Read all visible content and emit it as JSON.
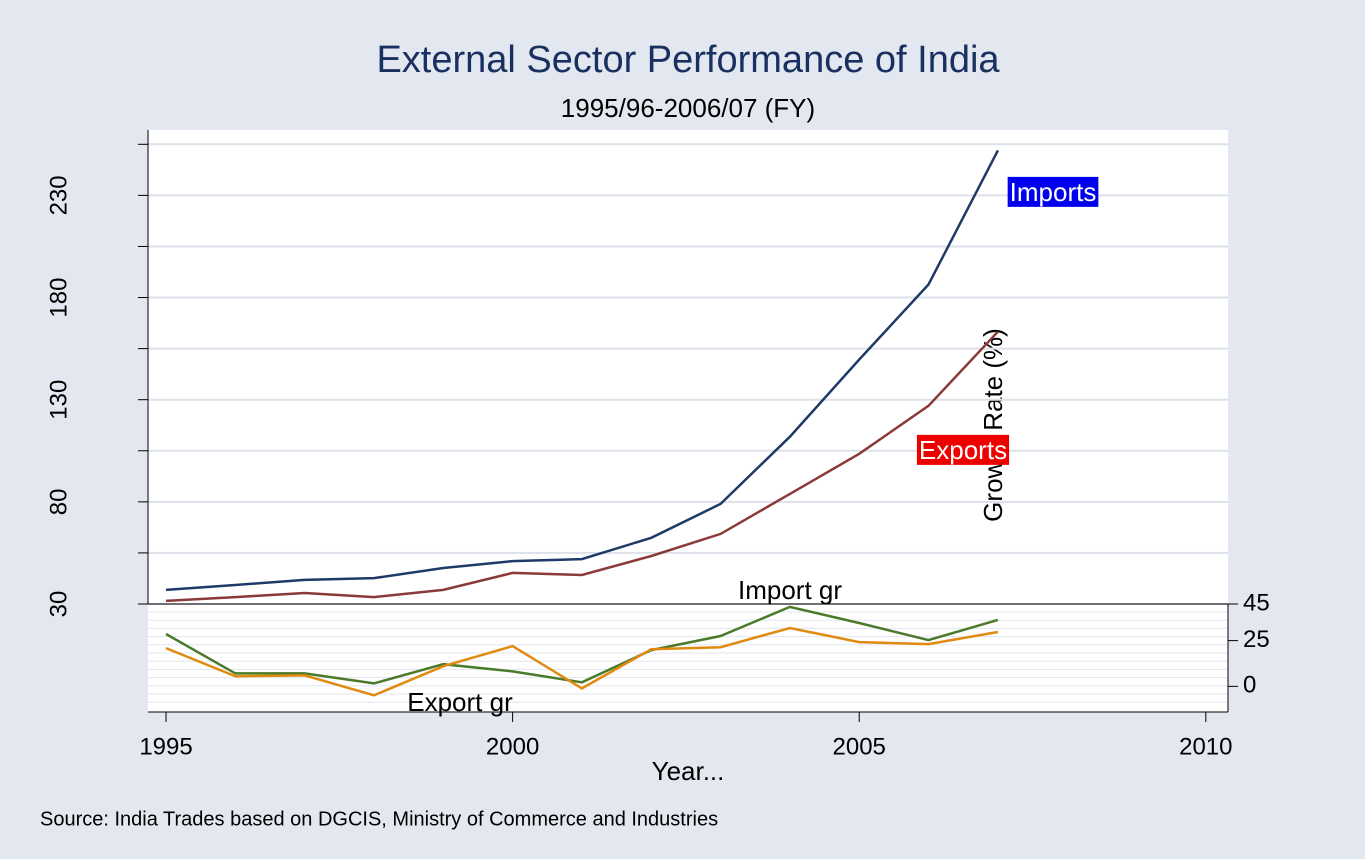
{
  "chart_data": {
    "type": "line",
    "title": "External Sector Performance of India",
    "subtitle": "1995/96-2006/07 (FY)",
    "x_label": "Year...",
    "y2_label": "Growth Rate (%)",
    "note": "Source:  India Trades based on DGCIS, Ministry of Commerce and Industries",
    "x": [
      1995,
      1996,
      1997,
      1998,
      1999,
      2000,
      2001,
      2002,
      2003,
      2004,
      2005,
      2006,
      2007
    ],
    "series": [
      {
        "name": "Imports",
        "color": "#1f3a68",
        "label_color": "#0000ee",
        "values": [
          36.9,
          39.3,
          41.8,
          42.7,
          47.6,
          51,
          52,
          62.4,
          79,
          111.9,
          149.6,
          186.4,
          252
        ]
      },
      {
        "name": "Exports",
        "color": "#8b3a3a",
        "label_color": "#ee0000",
        "values": [
          31.5,
          33.4,
          35.4,
          33.4,
          36.9,
          45.2,
          44.2,
          53.5,
          64.3,
          83.9,
          103.5,
          127,
          163.3
        ]
      },
      {
        "name": "Import gr",
        "color": "#4a7a2a",
        "axis": "y2",
        "values": [
          28.6,
          7.1,
          7.1,
          1.6,
          12.1,
          8.2,
          2.2,
          19.8,
          27.5,
          43.4,
          34.6,
          25.3,
          36.3
        ]
      },
      {
        "name": "Export gr",
        "color": "#e08a10",
        "axis": "y2",
        "values": [
          20.9,
          5.5,
          6,
          -4.9,
          11,
          22,
          -1.1,
          20.3,
          21.4,
          31.9,
          24.2,
          23.1,
          29.7
        ]
      }
    ],
    "xlim": [
      1994.74,
      2010.32
    ],
    "xticks": [
      1995,
      2000,
      2005,
      2010
    ],
    "ylim": [
      30,
      262
    ],
    "yticks": [
      30,
      80,
      130,
      180,
      230
    ],
    "yminorticks": [
      55,
      105,
      155,
      205,
      255
    ],
    "y2lim": [
      -14,
      45
    ],
    "y2ticks": [
      0,
      25,
      45
    ],
    "grid": true
  }
}
